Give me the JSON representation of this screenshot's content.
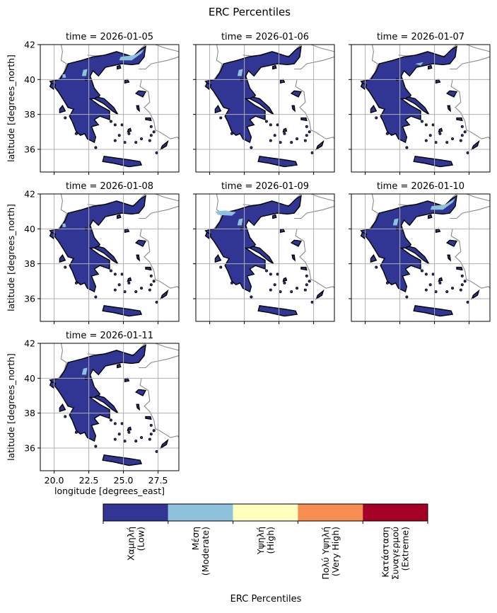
{
  "figure": {
    "title": "ERC Percentiles"
  },
  "colors": {
    "land_outline": "#000000",
    "neighbor_border": "#8a8a8a",
    "grid": "#b0b0b0"
  },
  "chart_data": {
    "type": "heatmap",
    "title": "ERC Percentiles",
    "xlabel": "longitude [degrees_east]",
    "ylabel": "latitude [degrees_north]",
    "xlim": [
      19.0,
      29.0
    ],
    "ylim": [
      34.7,
      42.0
    ],
    "xticks": [
      20.0,
      22.5,
      25.0,
      27.5
    ],
    "xtick_labels": [
      "20.0",
      "22.5",
      "25.0",
      "27.5"
    ],
    "yticks": [
      36,
      38,
      40,
      42
    ],
    "ytick_labels": [
      "36",
      "38",
      "40",
      "42"
    ],
    "grid": true,
    "panels": [
      {
        "title": "time = 2026-01-05",
        "dominant_class": "Χαμηλή (Low)",
        "moderate_patches": [
          "northern Greece strip",
          "western Macedonia"
        ]
      },
      {
        "title": "time = 2026-01-06",
        "dominant_class": "Χαμηλή (Low)",
        "moderate_patches": [
          "western Macedonia"
        ]
      },
      {
        "title": "time = 2026-01-07",
        "dominant_class": "Χαμηλή (Low)",
        "moderate_patches": [
          "small northern patch"
        ]
      },
      {
        "title": "time = 2026-01-08",
        "dominant_class": "Χαμηλή (Low)",
        "moderate_patches": [
          "small western patch"
        ]
      },
      {
        "title": "time = 2026-01-09",
        "dominant_class": "Χαμηλή (Low)",
        "moderate_patches": [
          "northern Greece strip",
          "western Macedonia"
        ]
      },
      {
        "title": "time = 2026-01-10",
        "dominant_class": "Χαμηλή (Low)",
        "moderate_patches": [
          "northeastern patch",
          "central Macedonia"
        ]
      },
      {
        "title": "time = 2026-01-11",
        "dominant_class": "Χαμηλή (Low)",
        "moderate_patches": [
          "western Macedonia"
        ]
      }
    ],
    "colorbar": {
      "label": "ERC Percentiles",
      "classes": [
        {
          "lines": [
            "Χαμηλή",
            "(Low)"
          ],
          "color": "#313695"
        },
        {
          "lines": [
            "Μέση",
            "(Moderate)"
          ],
          "color": "#8ec1dc"
        },
        {
          "lines": [
            "Υψηλή",
            "(High)"
          ],
          "color": "#ffffbf"
        },
        {
          "lines": [
            "Πολύ Υψηλή",
            "(Very High)"
          ],
          "color": "#f98e52"
        },
        {
          "lines": [
            "Κατάσταση",
            "Συναγερμού",
            "(Extreme)"
          ],
          "color": "#a50026"
        }
      ]
    }
  }
}
